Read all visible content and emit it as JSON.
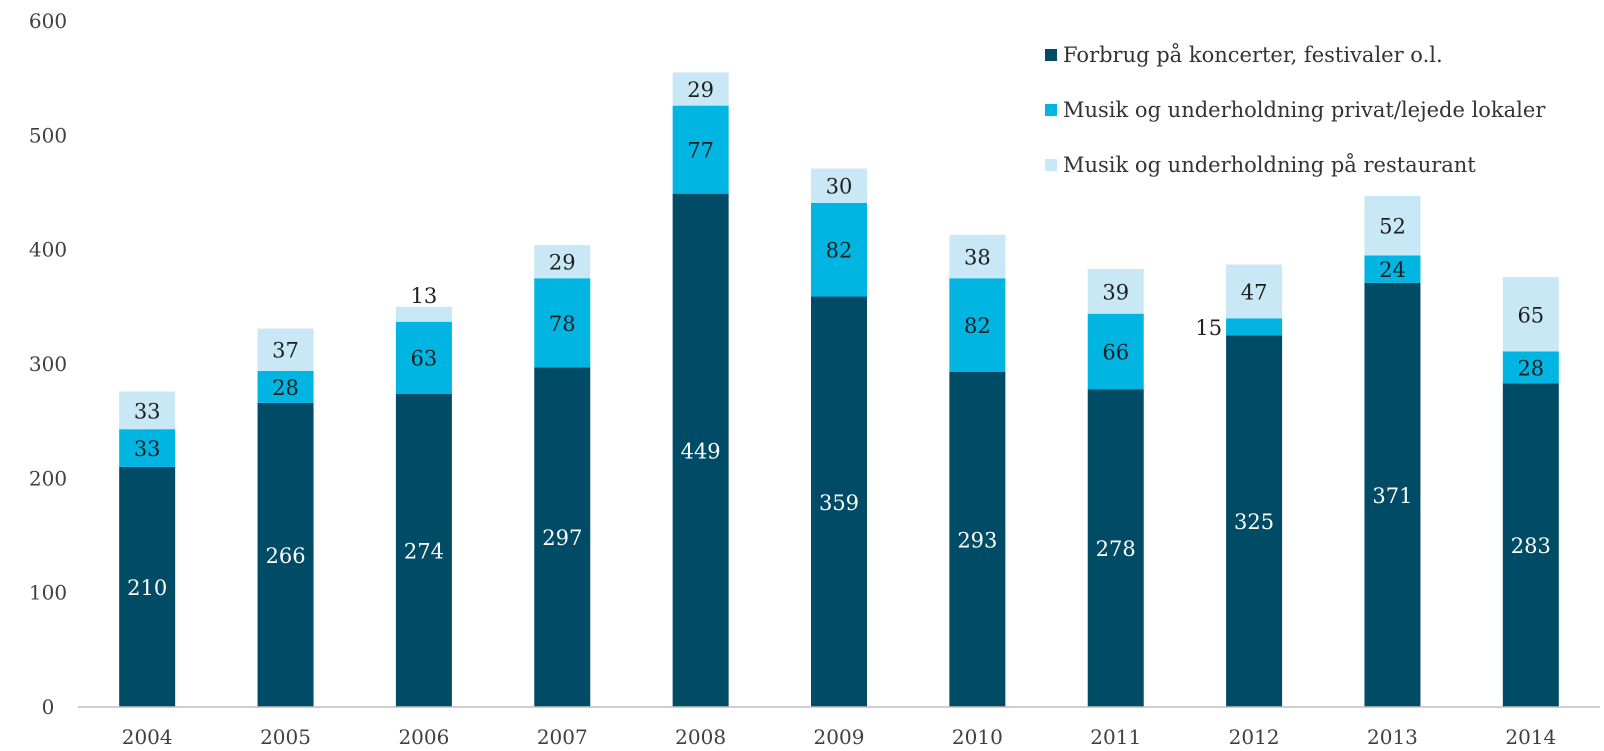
{
  "chart_data": {
    "type": "bar",
    "stacked": true,
    "title": "",
    "xlabel": "",
    "ylabel": "",
    "categories": [
      "2004",
      "2005",
      "2006",
      "2007",
      "2008",
      "2009",
      "2010",
      "2011",
      "2012",
      "2013",
      "2014"
    ],
    "ylim": [
      0,
      600
    ],
    "yticks": [
      0,
      100,
      200,
      300,
      400,
      500,
      600
    ],
    "grid": false,
    "legend_position": "top-right",
    "series": [
      {
        "name": "Forbrug på koncerter, festivaler o.l.",
        "color": "#004B66",
        "values": [
          210,
          266,
          274,
          297,
          449,
          359,
          293,
          278,
          325,
          371,
          283
        ]
      },
      {
        "name": "Musik og underholdning privat/lejede lokaler",
        "color": "#00B5E2",
        "values": [
          33,
          28,
          63,
          78,
          77,
          82,
          82,
          66,
          15,
          24,
          28
        ]
      },
      {
        "name": "Musik og underholdning på restaurant",
        "color": "#C9E8F6",
        "values": [
          33,
          37,
          13,
          29,
          29,
          30,
          38,
          39,
          47,
          52,
          65
        ]
      }
    ]
  }
}
